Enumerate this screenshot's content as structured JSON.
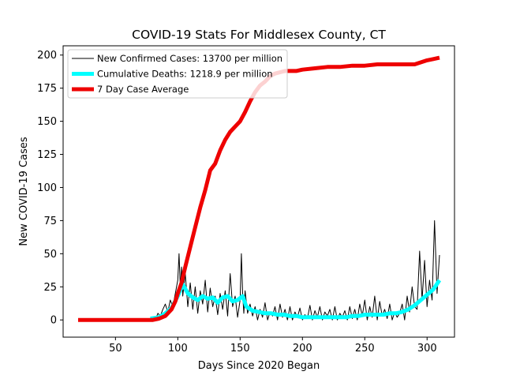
{
  "chart_data": {
    "type": "line",
    "title": "COVID-19 Stats For Middlesex County, CT",
    "xlabel": "Days Since 2020 Began",
    "ylabel": "New COVID-19 Cases",
    "xlim": [
      8,
      322
    ],
    "ylim": [
      -13,
      207
    ],
    "xticks": [
      50,
      100,
      150,
      200,
      250,
      300
    ],
    "yticks": [
      0,
      25,
      50,
      75,
      100,
      125,
      150,
      175,
      200
    ],
    "grid": false,
    "legend_position": "upper-left",
    "series": [
      {
        "name": "New Confirmed Cases: 13700 per million",
        "color": "#000000",
        "style": "thin",
        "x": [
          78,
          80,
          82,
          84,
          86,
          88,
          90,
          92,
          94,
          96,
          98,
          100,
          101,
          102,
          103,
          104,
          106,
          108,
          110,
          112,
          114,
          116,
          118,
          120,
          122,
          124,
          126,
          128,
          130,
          132,
          134,
          136,
          138,
          140,
          142,
          144,
          146,
          148,
          150,
          151,
          152,
          153,
          154,
          156,
          158,
          160,
          162,
          164,
          166,
          168,
          170,
          172,
          174,
          176,
          178,
          180,
          182,
          184,
          186,
          188,
          190,
          192,
          194,
          196,
          198,
          200,
          202,
          204,
          206,
          208,
          210,
          212,
          214,
          216,
          218,
          220,
          222,
          224,
          226,
          228,
          230,
          232,
          234,
          236,
          238,
          240,
          242,
          244,
          246,
          248,
          250,
          252,
          254,
          256,
          258,
          260,
          262,
          264,
          266,
          268,
          270,
          272,
          274,
          276,
          278,
          280,
          282,
          284,
          286,
          288,
          290,
          292,
          294,
          296,
          298,
          300,
          302,
          304,
          306,
          308,
          310
        ],
        "y": [
          0,
          2,
          0,
          5,
          3,
          8,
          12,
          6,
          15,
          10,
          20,
          30,
          50,
          25,
          40,
          18,
          35,
          10,
          28,
          8,
          25,
          5,
          22,
          12,
          30,
          6,
          24,
          10,
          18,
          4,
          20,
          8,
          22,
          3,
          35,
          10,
          18,
          2,
          15,
          50,
          20,
          5,
          22,
          5,
          12,
          3,
          10,
          0,
          8,
          2,
          13,
          0,
          6,
          3,
          10,
          0,
          12,
          2,
          8,
          0,
          10,
          0,
          6,
          2,
          9,
          0,
          4,
          1,
          11,
          0,
          7,
          2,
          10,
          0,
          6,
          3,
          8,
          0,
          10,
          0,
          5,
          2,
          7,
          0,
          10,
          1,
          8,
          0,
          12,
          3,
          15,
          0,
          10,
          2,
          18,
          0,
          14,
          3,
          8,
          1,
          12,
          0,
          6,
          2,
          5,
          12,
          0,
          18,
          6,
          25,
          10,
          8,
          52,
          15,
          45,
          10,
          30,
          15,
          75,
          20,
          49
        ]
      },
      {
        "name": "Cumulative Deaths: 1218.9 per million",
        "color": "#00ffff",
        "style": "thick",
        "x": [
          78,
          85,
          90,
          95,
          100,
          104,
          108,
          112,
          116,
          120,
          124,
          128,
          132,
          136,
          140,
          144,
          148,
          152,
          155,
          160,
          165,
          170,
          175,
          180,
          185,
          190,
          195,
          200,
          205,
          210,
          215,
          220,
          225,
          230,
          235,
          240,
          245,
          250,
          255,
          260,
          265,
          270,
          275,
          280,
          285,
          290,
          295,
          300,
          305,
          310
        ],
        "y": [
          1,
          2,
          5,
          9,
          18,
          27,
          20,
          17,
          15,
          18,
          16,
          17,
          13,
          17,
          18,
          14,
          15,
          18,
          10,
          7,
          6,
          5,
          5,
          4,
          4,
          3,
          3,
          2,
          2,
          2,
          2,
          2,
          2,
          2,
          2,
          3,
          3,
          4,
          4,
          4,
          4,
          5,
          5,
          6,
          8,
          11,
          15,
          19,
          23,
          30
        ]
      },
      {
        "name": "7 Day Case Average",
        "color": "#ee0000",
        "style": "thick",
        "x": [
          20,
          30,
          40,
          50,
          60,
          70,
          80,
          85,
          90,
          95,
          98,
          100,
          103,
          106,
          110,
          114,
          118,
          122,
          126,
          130,
          134,
          138,
          142,
          146,
          150,
          154,
          158,
          162,
          166,
          170,
          174,
          178,
          182,
          186,
          190,
          195,
          200,
          210,
          220,
          230,
          240,
          250,
          260,
          270,
          280,
          290,
          300,
          305,
          310
        ],
        "y": [
          0,
          0,
          0,
          0,
          0,
          0,
          0,
          1,
          3,
          8,
          14,
          20,
          28,
          40,
          55,
          70,
          85,
          98,
          113,
          118,
          128,
          136,
          142,
          146,
          150,
          157,
          165,
          172,
          177,
          180,
          184,
          186,
          187,
          188,
          188,
          188,
          189,
          190,
          191,
          191,
          192,
          192,
          193,
          193,
          193,
          193,
          196,
          197,
          198
        ]
      }
    ]
  }
}
